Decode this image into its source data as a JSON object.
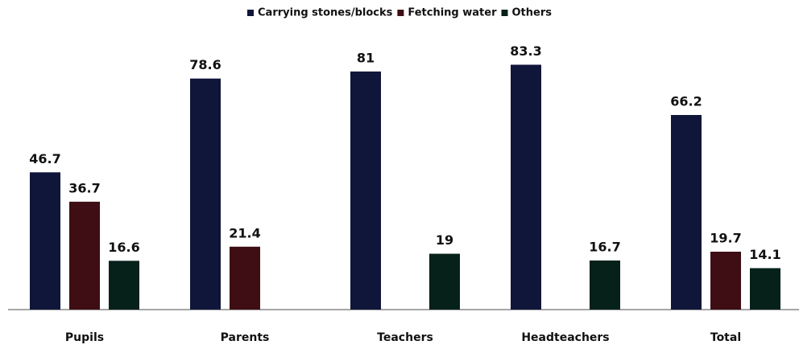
{
  "chart_data": {
    "type": "bar",
    "categories": [
      "Pupils",
      "Parents",
      "Teachers",
      "Headteachers",
      "Total"
    ],
    "series": [
      {
        "name": "Carrying stones/blocks",
        "color": "#10163a",
        "values": [
          46.7,
          78.6,
          81,
          83.3,
          66.2
        ]
      },
      {
        "name": "Fetching water",
        "color": "#3e0e14",
        "values": [
          36.7,
          21.4,
          null,
          null,
          19.7
        ]
      },
      {
        "name": "Others",
        "color": "#06201a",
        "values": [
          16.6,
          null,
          19,
          16.7,
          14.1
        ]
      }
    ],
    "ylim": [
      0,
      90
    ],
    "legend": "top"
  }
}
